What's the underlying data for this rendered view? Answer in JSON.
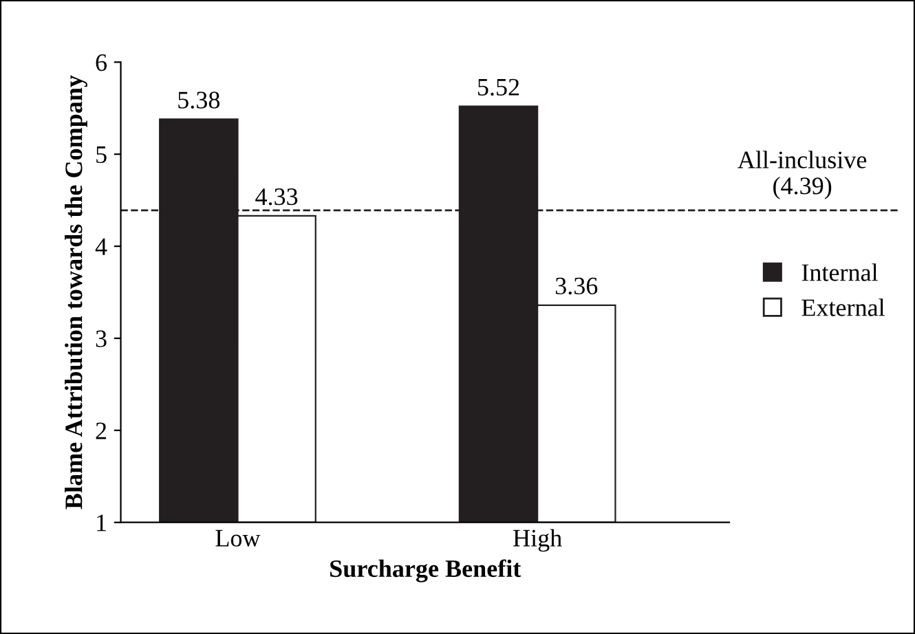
{
  "chart_data": {
    "type": "bar",
    "xlabel": "Surcharge Benefit",
    "ylabel": "Blame Attribution towards the Company",
    "categories": [
      "Low",
      "High"
    ],
    "series": [
      {
        "name": "Internal",
        "color": "#231f20",
        "values": [
          5.38,
          5.52
        ]
      },
      {
        "name": "External",
        "color": "#ffffff",
        "values": [
          4.33,
          3.36
        ]
      }
    ],
    "ylim": [
      1,
      6
    ],
    "yticks": [
      1,
      2,
      3,
      4,
      5,
      6
    ],
    "grid": false,
    "legend": "right",
    "data_labels": true,
    "ref_lines": [
      {
        "axis": "y",
        "value": 4.39,
        "label": "All-inclusive\n(4.39)",
        "color": "#231f20",
        "line_style": "dashed"
      }
    ]
  }
}
